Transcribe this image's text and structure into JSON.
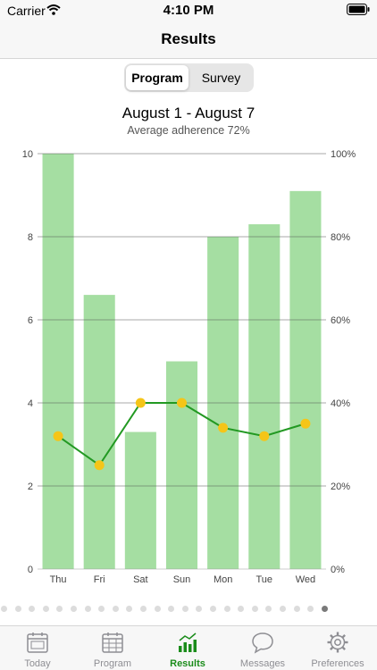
{
  "status_bar": {
    "carrier": "Carrier",
    "time": "4:10 PM"
  },
  "nav": {
    "title": "Results"
  },
  "segmented": {
    "options": [
      "Program",
      "Survey"
    ],
    "selected": "Program"
  },
  "header": {
    "range": "August 1 - August 7",
    "subtitle": "Average adherence 72%"
  },
  "colors": {
    "bar": "#a5dea2",
    "line": "#229922",
    "marker": "#f5c518",
    "accent": "#1a8c1a",
    "inactive": "#8e8e93"
  },
  "chart_data": {
    "type": "bar",
    "categories": [
      "Thu",
      "Fri",
      "Sat",
      "Sun",
      "Mon",
      "Tue",
      "Wed"
    ],
    "series": [
      {
        "type": "bar",
        "axis": "left",
        "values": [
          10,
          6.6,
          3.3,
          5,
          8,
          8.3,
          9.1
        ]
      },
      {
        "type": "line",
        "axis": "right",
        "values": [
          32,
          25,
          40,
          40,
          34,
          32,
          35
        ]
      }
    ],
    "y_left": {
      "ylim": [
        0,
        10
      ],
      "ticks": [
        "0",
        "2",
        "4",
        "6",
        "8",
        "10"
      ]
    },
    "y_right": {
      "ylim": [
        0,
        100
      ],
      "ticks": [
        "0%",
        "20%",
        "40%",
        "60%",
        "80%",
        "100%"
      ]
    },
    "grid": true
  },
  "pager": {
    "count": 24,
    "current": 23
  },
  "tabs": [
    {
      "label": "Today",
      "icon": "calendar-day-icon"
    },
    {
      "label": "Program",
      "icon": "calendar-grid-icon"
    },
    {
      "label": "Results",
      "icon": "chart-icon",
      "selected": true
    },
    {
      "label": "Messages",
      "icon": "speech-bubble-icon"
    },
    {
      "label": "Preferences",
      "icon": "gear-icon"
    }
  ]
}
